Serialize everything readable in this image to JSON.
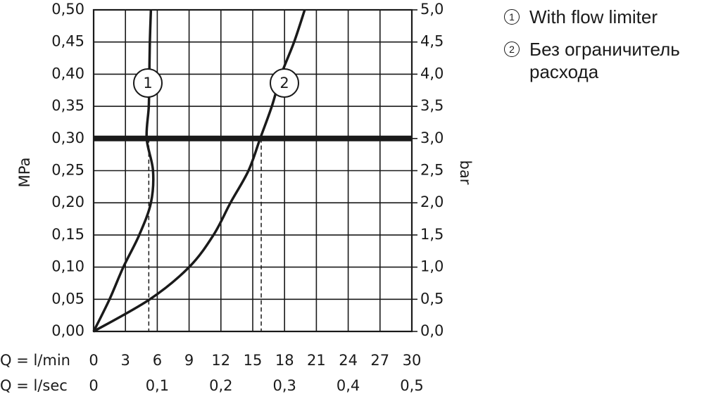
{
  "chart_data": {
    "type": "line",
    "y_label": "MPa",
    "y2_label": "bar",
    "x_label": "Q = l/min",
    "x2_label": "Q = l/sec",
    "xlim": [
      0,
      30
    ],
    "xticks": [
      0,
      3,
      6,
      9,
      12,
      15,
      18,
      21,
      24,
      27,
      30
    ],
    "x2lim": [
      0,
      0.5
    ],
    "x2ticks": [
      0,
      {
        "value": 0.1,
        "label": "0,1"
      },
      {
        "value": 0.2,
        "label": "0,2"
      },
      {
        "value": 0.3,
        "label": "0,3"
      },
      {
        "value": 0.4,
        "label": "0,4"
      },
      {
        "value": 0.5,
        "label": "0,5"
      }
    ],
    "ylim": [
      0,
      0.5
    ],
    "yticks": [
      {
        "value": 0,
        "label": "0,00"
      },
      {
        "value": 0.05,
        "label": "0,05"
      },
      {
        "value": 0.1,
        "label": "0,10"
      },
      {
        "value": 0.15,
        "label": "0,15"
      },
      {
        "value": 0.2,
        "label": "0,20"
      },
      {
        "value": 0.25,
        "label": "0,25"
      },
      {
        "value": 0.3,
        "label": "0,30"
      },
      {
        "value": 0.35,
        "label": "0,35"
      },
      {
        "value": 0.4,
        "label": "0,40"
      },
      {
        "value": 0.45,
        "label": "0,45"
      },
      {
        "value": 0.5,
        "label": "0,50"
      }
    ],
    "y2lim": [
      0,
      5
    ],
    "y2ticks": [
      {
        "value": 0,
        "label": "0,0"
      },
      {
        "value": 0.5,
        "label": "0,5"
      },
      {
        "value": 1,
        "label": "1,0"
      },
      {
        "value": 1.5,
        "label": "1,5"
      },
      {
        "value": 2,
        "label": "2,0"
      },
      {
        "value": 2.5,
        "label": "2,5"
      },
      {
        "value": 3,
        "label": "3,0"
      },
      {
        "value": 3.5,
        "label": "3,5"
      },
      {
        "value": 4,
        "label": "4,0"
      },
      {
        "value": 4.5,
        "label": "4,5"
      },
      {
        "value": 5,
        "label": "5,0"
      }
    ],
    "grid": true,
    "reference_y": 0.3,
    "drop_lines_x": [
      5.2,
      15.8
    ],
    "series": [
      {
        "label": "1",
        "name": "With flow limiter",
        "color": "#1a1a1a",
        "x": [
          0,
          1.5,
          2.8,
          4.3,
          5.4,
          5.6,
          5.0,
          5.2,
          5.25,
          5.3,
          5.4
        ],
        "values": [
          0,
          0.05,
          0.1,
          0.15,
          0.2,
          0.25,
          0.3,
          0.35,
          0.4,
          0.45,
          0.5
        ]
      },
      {
        "label": "2",
        "name": "Без ограничитель расхода",
        "color": "#1a1a1a",
        "x": [
          0,
          5.3,
          9.0,
          11.3,
          12.9,
          14.6,
          15.7,
          16.8,
          17.7,
          18.9,
          19.9
        ],
        "values": [
          0,
          0.05,
          0.1,
          0.15,
          0.2,
          0.25,
          0.3,
          0.35,
          0.4,
          0.45,
          0.5
        ]
      }
    ]
  }
}
